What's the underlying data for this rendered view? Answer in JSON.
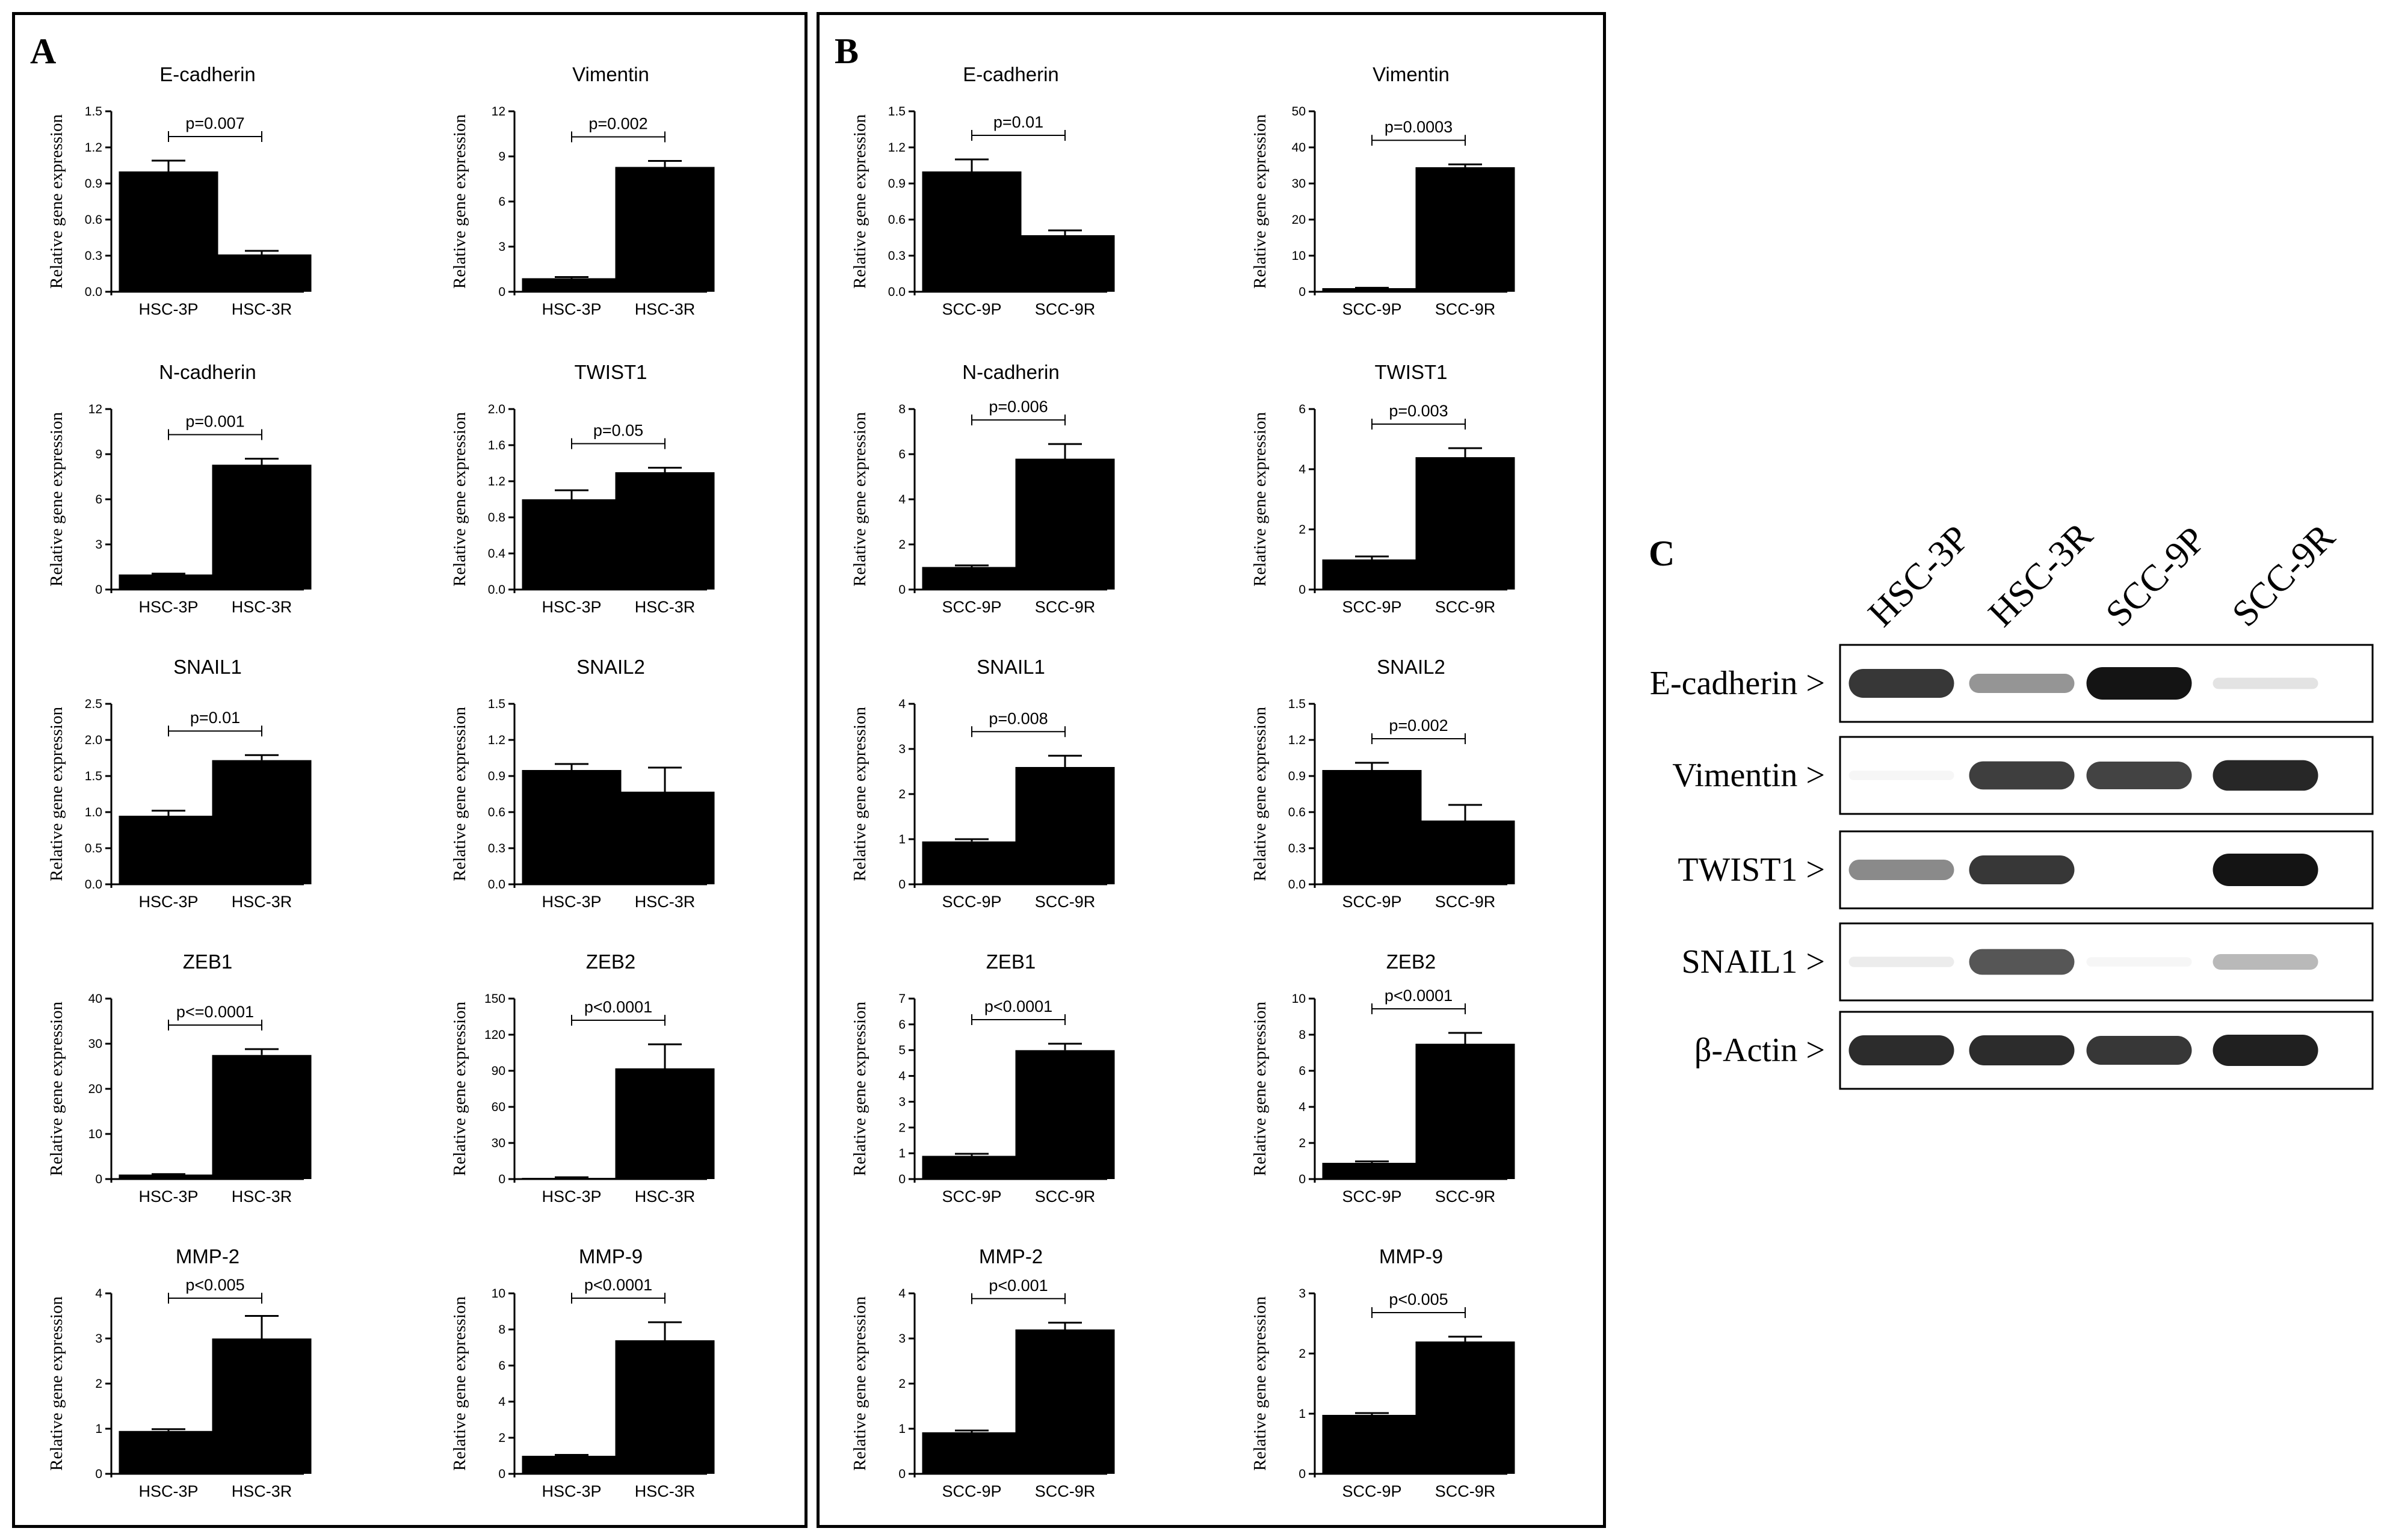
{
  "panels": {
    "a": "A",
    "b": "B",
    "c": "C"
  },
  "ylabel": "Relative gene expression",
  "chart_data": [
    {
      "type": "bar",
      "panel": "A",
      "title": "E-cadherin",
      "categories": [
        "HSC-3P",
        "HSC-3R"
      ],
      "values": [
        1.0,
        0.31
      ],
      "errors": [
        0.09,
        0.03
      ],
      "ylim": [
        0,
        1.5
      ],
      "yticks": [
        "0.0",
        "0.3",
        "0.6",
        "0.9",
        "1.2",
        "1.5"
      ],
      "ylabel": "Relative gene expression",
      "pvalue": "p=0.007"
    },
    {
      "type": "bar",
      "panel": "A",
      "title": "Vimentin",
      "categories": [
        "HSC-3P",
        "HSC-3R"
      ],
      "values": [
        0.9,
        8.3
      ],
      "errors": [
        0.08,
        0.4
      ],
      "ylim": [
        0,
        12
      ],
      "yticks": [
        "0",
        "3",
        "6",
        "9",
        "12"
      ],
      "ylabel": "Relative gene expression",
      "pvalue": "p=0.002"
    },
    {
      "type": "bar",
      "panel": "A",
      "title": "N-cadherin",
      "categories": [
        "HSC-3P",
        "HSC-3R"
      ],
      "values": [
        1.0,
        8.3
      ],
      "errors": [
        0.06,
        0.4
      ],
      "ylim": [
        0,
        12
      ],
      "yticks": [
        "0",
        "3",
        "6",
        "9",
        "12"
      ],
      "ylabel": "Relative gene expression",
      "pvalue": "p=0.001"
    },
    {
      "type": "bar",
      "panel": "A",
      "title": "TWIST1",
      "categories": [
        "HSC-3P",
        "HSC-3R"
      ],
      "values": [
        1.0,
        1.3
      ],
      "errors": [
        0.1,
        0.05
      ],
      "ylim": [
        0,
        2.0
      ],
      "yticks": [
        "0.0",
        "0.4",
        "0.8",
        "1.2",
        "1.6",
        "2.0"
      ],
      "ylabel": "Relative gene expression",
      "pvalue": "p=0.05"
    },
    {
      "type": "bar",
      "panel": "A",
      "title": "SNAIL1",
      "categories": [
        "HSC-3P",
        "HSC-3R"
      ],
      "values": [
        0.95,
        1.72
      ],
      "errors": [
        0.07,
        0.07
      ],
      "ylim": [
        0,
        2.5
      ],
      "yticks": [
        "0.0",
        "0.5",
        "1.0",
        "1.5",
        "2.0",
        "2.5"
      ],
      "ylabel": "Relative gene expression",
      "pvalue": "p=0.01"
    },
    {
      "type": "bar",
      "panel": "A",
      "title": "SNAIL2",
      "categories": [
        "HSC-3P",
        "HSC-3R"
      ],
      "values": [
        0.95,
        0.77
      ],
      "errors": [
        0.05,
        0.2
      ],
      "ylim": [
        0,
        1.5
      ],
      "yticks": [
        "0.0",
        "0.3",
        "0.6",
        "0.9",
        "1.2",
        "1.5"
      ],
      "ylabel": "Relative gene expression",
      "pvalue": ""
    },
    {
      "type": "bar",
      "panel": "A",
      "title": "ZEB1",
      "categories": [
        "HSC-3P",
        "HSC-3R"
      ],
      "values": [
        1.0,
        27.5
      ],
      "errors": [
        0.1,
        1.3
      ],
      "ylim": [
        0,
        40
      ],
      "yticks": [
        "0",
        "10",
        "20",
        "30",
        "40"
      ],
      "ylabel": "Relative gene expression",
      "pvalue": "p<=0.0001"
    },
    {
      "type": "bar",
      "panel": "A",
      "title": "ZEB2",
      "categories": [
        "HSC-3P",
        "HSC-3R"
      ],
      "values": [
        1.0,
        92
      ],
      "errors": [
        0.5,
        20
      ],
      "ylim": [
        0,
        150
      ],
      "yticks": [
        "0",
        "30",
        "60",
        "90",
        "120",
        "150"
      ],
      "ylabel": "Relative gene expression",
      "pvalue": "p<0.0001"
    },
    {
      "type": "bar",
      "panel": "A",
      "title": "MMP-2",
      "categories": [
        "HSC-3P",
        "HSC-3R"
      ],
      "values": [
        0.95,
        3.0
      ],
      "errors": [
        0.04,
        0.5
      ],
      "ylim": [
        0,
        4
      ],
      "yticks": [
        "0",
        "1",
        "2",
        "3",
        "4"
      ],
      "ylabel": "Relative gene expression",
      "pvalue": "p<0.005"
    },
    {
      "type": "bar",
      "panel": "A",
      "title": "MMP-9",
      "categories": [
        "HSC-3P",
        "HSC-3R"
      ],
      "values": [
        1.0,
        7.4
      ],
      "errors": [
        0.05,
        1.0
      ],
      "ylim": [
        0,
        10
      ],
      "yticks": [
        "0",
        "2",
        "4",
        "6",
        "8",
        "10"
      ],
      "ylabel": "Relative gene expression",
      "pvalue": "p<0.0001"
    },
    {
      "type": "bar",
      "panel": "B",
      "title": "E-cadherin",
      "categories": [
        "SCC-9P",
        "SCC-9R"
      ],
      "values": [
        1.0,
        0.47
      ],
      "errors": [
        0.1,
        0.04
      ],
      "ylim": [
        0,
        1.5
      ],
      "yticks": [
        "0.0",
        "0.3",
        "0.6",
        "0.9",
        "1.2",
        "1.5"
      ],
      "ylabel": "Relative gene expression",
      "pvalue": "p=0.01"
    },
    {
      "type": "bar",
      "panel": "B",
      "title": "Vimentin",
      "categories": [
        "SCC-9P",
        "SCC-9R"
      ],
      "values": [
        1.0,
        34.5
      ],
      "errors": [
        0.1,
        0.8
      ],
      "ylim": [
        0,
        50
      ],
      "yticks": [
        "0",
        "10",
        "20",
        "30",
        "40",
        "50"
      ],
      "ylabel": "Relative gene expression",
      "pvalue": "p=0.0003"
    },
    {
      "type": "bar",
      "panel": "B",
      "title": "N-cadherin",
      "categories": [
        "SCC-9P",
        "SCC-9R"
      ],
      "values": [
        1.0,
        5.8
      ],
      "errors": [
        0.07,
        0.65
      ],
      "ylim": [
        0,
        8
      ],
      "yticks": [
        "0",
        "2",
        "4",
        "6",
        "8"
      ],
      "ylabel": "Relative gene expression",
      "pvalue": "p=0.006"
    },
    {
      "type": "bar",
      "panel": "B",
      "title": "TWIST1",
      "categories": [
        "SCC-9P",
        "SCC-9R"
      ],
      "values": [
        1.0,
        4.4
      ],
      "errors": [
        0.1,
        0.3
      ],
      "ylim": [
        0,
        6
      ],
      "yticks": [
        "0",
        "2",
        "4",
        "6"
      ],
      "ylabel": "Relative gene expression",
      "pvalue": "p=0.003"
    },
    {
      "type": "bar",
      "panel": "B",
      "title": "SNAIL1",
      "categories": [
        "SCC-9P",
        "SCC-9R"
      ],
      "values": [
        0.95,
        2.6
      ],
      "errors": [
        0.05,
        0.25
      ],
      "ylim": [
        0,
        4
      ],
      "yticks": [
        "0",
        "1",
        "2",
        "3",
        "4"
      ],
      "ylabel": "Relative gene expression",
      "pvalue": "p=0.008"
    },
    {
      "type": "bar",
      "panel": "B",
      "title": "SNAIL2",
      "categories": [
        "SCC-9P",
        "SCC-9R"
      ],
      "values": [
        0.95,
        0.53
      ],
      "errors": [
        0.06,
        0.13
      ],
      "ylim": [
        0,
        1.5
      ],
      "yticks": [
        "0.0",
        "0.3",
        "0.6",
        "0.9",
        "1.2",
        "1.5"
      ],
      "ylabel": "Relative gene expression",
      "pvalue": "p=0.002"
    },
    {
      "type": "bar",
      "panel": "B",
      "title": "ZEB1",
      "categories": [
        "SCC-9P",
        "SCC-9R"
      ],
      "values": [
        0.9,
        5.0
      ],
      "errors": [
        0.08,
        0.25
      ],
      "ylim": [
        0,
        7
      ],
      "yticks": [
        "0",
        "1",
        "2",
        "3",
        "4",
        "5",
        "6",
        "7"
      ],
      "ylabel": "Relative gene expression",
      "pvalue": "p<0.0001"
    },
    {
      "type": "bar",
      "panel": "B",
      "title": "ZEB2",
      "categories": [
        "SCC-9P",
        "SCC-9R"
      ],
      "values": [
        0.9,
        7.5
      ],
      "errors": [
        0.08,
        0.6
      ],
      "ylim": [
        0,
        10
      ],
      "yticks": [
        "0",
        "2",
        "4",
        "6",
        "8",
        "10"
      ],
      "ylabel": "Relative gene expression",
      "pvalue": "p<0.0001"
    },
    {
      "type": "bar",
      "panel": "B",
      "title": "MMP-2",
      "categories": [
        "SCC-9P",
        "SCC-9R"
      ],
      "values": [
        0.92,
        3.2
      ],
      "errors": [
        0.04,
        0.15
      ],
      "ylim": [
        0,
        4
      ],
      "yticks": [
        "0",
        "1",
        "2",
        "3",
        "4"
      ],
      "ylabel": "Relative gene expression",
      "pvalue": "p<0.001"
    },
    {
      "type": "bar",
      "panel": "B",
      "title": "MMP-9",
      "categories": [
        "SCC-9P",
        "SCC-9R"
      ],
      "values": [
        0.98,
        2.2
      ],
      "errors": [
        0.03,
        0.08
      ],
      "ylim": [
        0,
        3
      ],
      "yticks": [
        "0",
        "1",
        "2",
        "3"
      ],
      "ylabel": "Relative gene expression",
      "pvalue": "p<0.005"
    }
  ],
  "western_blot": {
    "lanes": [
      "HSC-3P",
      "HSC-3R",
      "SCC-9P",
      "SCC-9R"
    ],
    "rows": [
      {
        "label": "E-cadherin >",
        "intensity": [
          0.85,
          0.45,
          1.0,
          0.12
        ]
      },
      {
        "label": "Vimentin >",
        "intensity": [
          0.04,
          0.82,
          0.8,
          0.92
        ]
      },
      {
        "label": "TWIST1 >",
        "intensity": [
          0.5,
          0.85,
          0.0,
          1.0
        ]
      },
      {
        "label": "SNAIL1 >",
        "intensity": [
          0.08,
          0.72,
          0.04,
          0.3
        ]
      },
      {
        "label": "β-Actin >",
        "intensity": [
          0.9,
          0.9,
          0.85,
          0.95
        ]
      }
    ]
  }
}
